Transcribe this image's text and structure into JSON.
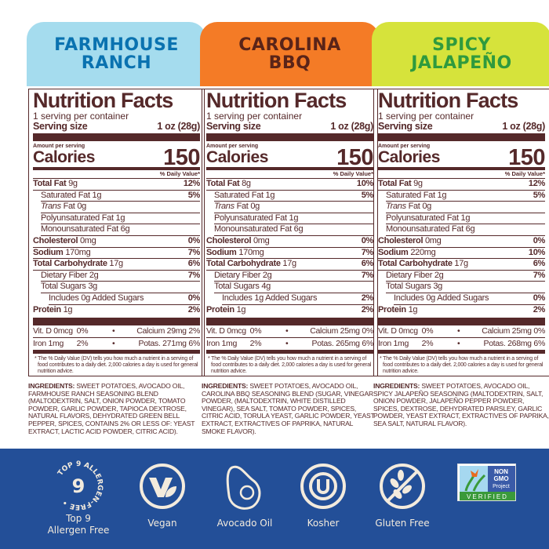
{
  "colors": {
    "brown": "#55292a",
    "band": "#234f98",
    "cream": "#f3ebdd"
  },
  "panels": [
    {
      "name": "FARMHOUSE\nRANCH",
      "banner_bg": "#a5dcee",
      "banner_fg": "#0a72b0",
      "title": "Nutrition Facts",
      "servings": "1 serving per container",
      "serving_size_label": "Serving size",
      "serving_size": "1 oz (28g)",
      "amount_per_serving": "Amount per serving",
      "calories_label": "Calories",
      "calories": "150",
      "dv_header": "% Daily Value*",
      "rows": [
        {
          "label": "Total Fat",
          "amount": "9g",
          "dv": "12%",
          "bold": true,
          "indent": 0
        },
        {
          "label": "Saturated Fat",
          "amount": "1g",
          "dv": "5%",
          "indent": 1
        },
        {
          "label": "Trans",
          "label2": " Fat",
          "amount": "0g",
          "dv": "",
          "indent": 1,
          "italic": true
        },
        {
          "label": "Polyunsaturated Fat",
          "amount": "1g",
          "dv": "",
          "indent": 1
        },
        {
          "label": "Monounsaturated Fat",
          "amount": "6g",
          "dv": "",
          "indent": 1
        },
        {
          "label": "Cholesterol",
          "amount": "0mg",
          "dv": "0%",
          "bold": true,
          "indent": 0
        },
        {
          "label": "Sodium",
          "amount": "170mg",
          "dv": "7%",
          "bold": true,
          "indent": 0
        },
        {
          "label": "Total Carbohydrate",
          "amount": "17g",
          "dv": "6%",
          "bold": true,
          "indent": 0
        },
        {
          "label": "Dietary Fiber",
          "amount": "2g",
          "dv": "7%",
          "indent": 1
        },
        {
          "label": "Total Sugars",
          "amount": "3g",
          "dv": "",
          "indent": 1
        },
        {
          "label": "Includes 0g Added Sugars",
          "amount": "",
          "dv": "0%",
          "indent": 2
        },
        {
          "label": "Protein",
          "amount": "1g",
          "dv": "2%",
          "bold": true,
          "indent": 0
        }
      ],
      "vitamins": [
        [
          "Vit. D 0mcg",
          "0%",
          "•",
          "Calcium 29mg",
          "2%"
        ],
        [
          "Iron 1mg",
          "2%",
          "•",
          "Potas. 271mg",
          "6%"
        ]
      ],
      "footnote": "* The % Daily Value (DV) tells you how much a nutrient in a serving of food contributes to a daily diet. 2,000 calories a day is used for general nutrition advice.",
      "ingredients_label": "INGREDIENTS:",
      "ingredients": " Sweet potatoes, avocado oil, farmhouse ranch seasoning blend (maltodextrin, salt, onion powder, tomato powder, garlic powder, tapioca dextrose, natural flavors, dehydrated green bell pepper, spices, contains 2% or less of: yeast extract, lactic acid powder, citric acid)."
    },
    {
      "name": "CAROLINA\nBBQ",
      "banner_bg": "#f47b26",
      "banner_fg": "#5a2418",
      "title": "Nutrition Facts",
      "servings": "1 serving per container",
      "serving_size_label": "Serving size",
      "serving_size": "1 oz (28g)",
      "amount_per_serving": "Amount per serving",
      "calories_label": "Calories",
      "calories": "150",
      "dv_header": "% Daily Value*",
      "rows": [
        {
          "label": "Total Fat",
          "amount": "8g",
          "dv": "10%",
          "bold": true,
          "indent": 0
        },
        {
          "label": "Saturated Fat",
          "amount": "1g",
          "dv": "5%",
          "indent": 1
        },
        {
          "label": "Trans",
          "label2": " Fat",
          "amount": "0g",
          "dv": "",
          "indent": 1,
          "italic": true
        },
        {
          "label": "Polyunsaturated Fat",
          "amount": "1g",
          "dv": "",
          "indent": 1
        },
        {
          "label": "Monounsaturated Fat",
          "amount": "6g",
          "dv": "",
          "indent": 1
        },
        {
          "label": "Cholesterol",
          "amount": "0mg",
          "dv": "0%",
          "bold": true,
          "indent": 0
        },
        {
          "label": "Sodium",
          "amount": "170mg",
          "dv": "7%",
          "bold": true,
          "indent": 0
        },
        {
          "label": "Total Carbohydrate",
          "amount": "17g",
          "dv": "6%",
          "bold": true,
          "indent": 0
        },
        {
          "label": "Dietary Fiber",
          "amount": "2g",
          "dv": "7%",
          "indent": 1
        },
        {
          "label": "Total Sugars",
          "amount": "4g",
          "dv": "",
          "indent": 1
        },
        {
          "label": "Includes 1g Added Sugars",
          "amount": "",
          "dv": "2%",
          "indent": 2
        },
        {
          "label": "Protein",
          "amount": "1g",
          "dv": "2%",
          "bold": true,
          "indent": 0
        }
      ],
      "vitamins": [
        [
          "Vit. D 0mcg",
          "0%",
          "•",
          "Calcium 25mg",
          "0%"
        ],
        [
          "Iron 1mg",
          "2%",
          "•",
          "Potas. 265mg",
          "6%"
        ]
      ],
      "footnote": "* The % Daily Value (DV) tells you how much a nutrient in a serving of food contributes to a daily diet. 2,000 calories a day is used for general nutrition advice.",
      "ingredients_label": "INGREDIENTS:",
      "ingredients": " Sweet potatoes, avocado oil, carolina BBQ seasoning blend (sugar, vinegar powder, (maltodextrin, white distilled vinegar), sea salt, tomato powder, spices, citric acid, torula yeast, garlic powder, yeast extract, extractives of paprika, natural smoke flavor)."
    },
    {
      "name": "SPICY\nJALAPEÑO",
      "banner_bg": "#d6e33b",
      "banner_fg": "#2f9a3e",
      "title": "Nutrition Facts",
      "servings": "1 serving per container",
      "serving_size_label": "Serving size",
      "serving_size": "1 oz (28g)",
      "amount_per_serving": "Amount per serving",
      "calories_label": "Calories",
      "calories": "150",
      "dv_header": "% Daily Value*",
      "rows": [
        {
          "label": "Total Fat",
          "amount": "9g",
          "dv": "12%",
          "bold": true,
          "indent": 0
        },
        {
          "label": "Saturated Fat",
          "amount": "1g",
          "dv": "5%",
          "indent": 1
        },
        {
          "label": "Trans",
          "label2": " Fat",
          "amount": "0g",
          "dv": "",
          "indent": 1,
          "italic": true
        },
        {
          "label": "Polyunsaturated Fat",
          "amount": "1g",
          "dv": "",
          "indent": 1
        },
        {
          "label": "Monounsaturated Fat",
          "amount": "6g",
          "dv": "",
          "indent": 1
        },
        {
          "label": "Cholesterol",
          "amount": "0mg",
          "dv": "0%",
          "bold": true,
          "indent": 0
        },
        {
          "label": "Sodium",
          "amount": "220mg",
          "dv": "10%",
          "bold": true,
          "indent": 0
        },
        {
          "label": "Total Carbohydrate",
          "amount": "17g",
          "dv": "6%",
          "bold": true,
          "indent": 0
        },
        {
          "label": "Dietary Fiber",
          "amount": "2g",
          "dv": "7%",
          "indent": 1
        },
        {
          "label": "Total Sugars",
          "amount": "3g",
          "dv": "",
          "indent": 1
        },
        {
          "label": "Includes 0g Added Sugars",
          "amount": "",
          "dv": "0%",
          "indent": 2
        },
        {
          "label": "Protein",
          "amount": "1g",
          "dv": "2%",
          "bold": true,
          "indent": 0
        }
      ],
      "vitamins": [
        [
          "Vit. D 0mcg",
          "0%",
          "•",
          "Calcium 25mg",
          "0%"
        ],
        [
          "Iron 1mg",
          "2%",
          "•",
          "Potas. 268mg",
          "6%"
        ]
      ],
      "footnote": "* The % Daily Value (DV) tells you how much a nutrient in a serving of food contributes to a daily diet. 2,000 calories a day is used for general nutrition advice.",
      "ingredients_label": "INGREDIENTS:",
      "ingredients": " Sweet potatoes, avocado oil, spicy jalapeño seasoning (maltodextrin, salt, onion powder, jalapeño pepper powder, spices, dextrose, dehydrated parsley, garlic powder, yeast extract, extractives of paprika, sea salt, natural flavor)."
    }
  ],
  "badges": [
    {
      "icon": "allergen-free-icon",
      "label": "Top 9\nAllergen Free",
      "ring_text": "TOP 9 ALLERGEN-FREE •",
      "number": "9"
    },
    {
      "icon": "vegan-icon",
      "label": "Vegan"
    },
    {
      "icon": "avocado-icon",
      "label": "Avocado Oil"
    },
    {
      "icon": "kosher-icon",
      "label": "Kosher"
    },
    {
      "icon": "gluten-free-icon",
      "label": "Gluten Free"
    },
    {
      "icon": "non-gmo-icon",
      "label": "",
      "logo_text": [
        "NON",
        "GMO",
        "Project",
        "VERIFIED"
      ]
    }
  ]
}
